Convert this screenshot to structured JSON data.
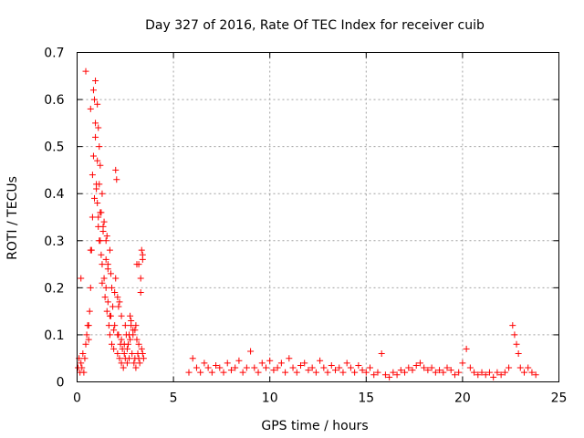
{
  "chart_data": {
    "type": "scatter",
    "title": "Day 327 of 2016, Rate Of TEC Index for receiver cuib",
    "xlabel": "GPS time / hours",
    "ylabel": "ROTI / TECUs",
    "xlim": [
      0,
      25
    ],
    "ylim": [
      0,
      0.7
    ],
    "xticks": [
      "0",
      "5",
      "10",
      "15",
      "20",
      "25"
    ],
    "yticks": [
      "0",
      "0.1",
      "0.2",
      "0.3",
      "0.4",
      "0.5",
      "0.6",
      "0.7"
    ],
    "grid": true,
    "legend": "none",
    "marker": "+",
    "color": "#ff0000",
    "series": [
      {
        "x": [
          0.05,
          0.1,
          0.15,
          0.2,
          0.25,
          0.3,
          0.35,
          0.4,
          0.45,
          0.5,
          0.55,
          0.6,
          0.65,
          0.7,
          0.75,
          0.8,
          0.85,
          0.9,
          0.95,
          1.0,
          1.05,
          1.1,
          1.15,
          1.2,
          1.25,
          1.3,
          1.35,
          1.4,
          1.45,
          1.5,
          1.55,
          1.6,
          1.65,
          1.7,
          1.75,
          1.8,
          1.85,
          1.9,
          1.95,
          2.0,
          2.05,
          2.1,
          2.15,
          2.2,
          2.25,
          2.3,
          2.35,
          2.4,
          2.45,
          2.5,
          2.55,
          2.6,
          2.65,
          2.7,
          2.75,
          2.8,
          2.85,
          2.9,
          2.95,
          3.0,
          3.05,
          3.1,
          3.15,
          3.2,
          3.25,
          3.3,
          3.35,
          3.4,
          3.45,
          0.2,
          0.45,
          0.8,
          0.95,
          1.05,
          1.1,
          1.15,
          1.2,
          1.3,
          1.4,
          1.5,
          1.6,
          1.7,
          1.8,
          2.0,
          2.1,
          2.2,
          2.3,
          2.5,
          2.7,
          2.9,
          3.1,
          3.2,
          3.3,
          3.4,
          0.6,
          0.7,
          0.9,
          1.0,
          1.1,
          1.2,
          1.3,
          1.5,
          1.6,
          1.7,
          1.9,
          2.1,
          2.3,
          2.6,
          2.8,
          3.0,
          3.2,
          3.4,
          0.7,
          0.85,
          0.95,
          1.05,
          1.15,
          1.25,
          1.35,
          1.55,
          1.75,
          1.95,
          2.15,
          2.45,
          2.75,
          3.05,
          3.35
        ],
        "y": [
          0.03,
          0.05,
          0.02,
          0.04,
          0.03,
          0.06,
          0.02,
          0.05,
          0.08,
          0.1,
          0.12,
          0.09,
          0.15,
          0.2,
          0.28,
          0.35,
          0.48,
          0.6,
          0.52,
          0.42,
          0.38,
          0.33,
          0.3,
          0.36,
          0.27,
          0.25,
          0.32,
          0.22,
          0.18,
          0.2,
          0.15,
          0.25,
          0.12,
          0.1,
          0.14,
          0.08,
          0.16,
          0.07,
          0.12,
          0.45,
          0.43,
          0.06,
          0.1,
          0.05,
          0.08,
          0.04,
          0.07,
          0.03,
          0.06,
          0.05,
          0.1,
          0.04,
          0.08,
          0.05,
          0.14,
          0.12,
          0.06,
          0.1,
          0.04,
          0.05,
          0.03,
          0.25,
          0.06,
          0.08,
          0.04,
          0.19,
          0.07,
          0.26,
          0.05,
          0.22,
          0.66,
          0.44,
          0.64,
          0.59,
          0.54,
          0.5,
          0.46,
          0.4,
          0.34,
          0.3,
          0.24,
          0.28,
          0.2,
          0.22,
          0.18,
          0.17,
          0.14,
          0.12,
          0.1,
          0.11,
          0.09,
          0.25,
          0.22,
          0.27,
          0.12,
          0.28,
          0.39,
          0.41,
          0.35,
          0.3,
          0.21,
          0.26,
          0.17,
          0.14,
          0.11,
          0.1,
          0.09,
          0.07,
          0.13,
          0.11,
          0.05,
          0.06,
          0.58,
          0.62,
          0.55,
          0.47,
          0.42,
          0.36,
          0.33,
          0.31,
          0.23,
          0.19,
          0.16,
          0.08,
          0.09,
          0.12,
          0.28
        ]
      },
      {
        "x": [
          5.8,
          6.0,
          6.2,
          6.4,
          6.6,
          6.8,
          7.0,
          7.2,
          7.4,
          7.6,
          7.8,
          8.0,
          8.2,
          8.4,
          8.6,
          8.8,
          9.0,
          9.2,
          9.4,
          9.6,
          9.8,
          10.0,
          10.2,
          10.4,
          10.6,
          10.8,
          11.0,
          11.2,
          11.4,
          11.6,
          11.8,
          12.0,
          12.2,
          12.4,
          12.6,
          12.8,
          13.0,
          13.2,
          13.4,
          13.6,
          13.8,
          14.0,
          14.2,
          14.4,
          14.6,
          14.8,
          15.0,
          15.2,
          15.4,
          15.6,
          15.8,
          16.0,
          16.2,
          16.4,
          16.6,
          16.8,
          17.0,
          17.2,
          17.4,
          17.6,
          17.8,
          18.0,
          18.2,
          18.4,
          18.6,
          18.8,
          19.0,
          19.2,
          19.4,
          19.6,
          19.8,
          20.0,
          20.2,
          20.4,
          20.6,
          20.8,
          21.0,
          21.2,
          21.4,
          21.6,
          21.8,
          22.0,
          22.2,
          22.4,
          22.6,
          22.7,
          22.8,
          22.9,
          23.0,
          23.2,
          23.4,
          23.6,
          23.8
        ],
        "y": [
          0.02,
          0.05,
          0.03,
          0.02,
          0.04,
          0.03,
          0.02,
          0.035,
          0.03,
          0.02,
          0.04,
          0.025,
          0.03,
          0.045,
          0.02,
          0.03,
          0.065,
          0.03,
          0.02,
          0.04,
          0.03,
          0.045,
          0.025,
          0.03,
          0.04,
          0.02,
          0.05,
          0.03,
          0.02,
          0.035,
          0.04,
          0.025,
          0.03,
          0.02,
          0.045,
          0.03,
          0.02,
          0.035,
          0.025,
          0.03,
          0.02,
          0.04,
          0.03,
          0.02,
          0.035,
          0.025,
          0.02,
          0.03,
          0.015,
          0.02,
          0.06,
          0.015,
          0.01,
          0.02,
          0.015,
          0.025,
          0.02,
          0.03,
          0.025,
          0.035,
          0.04,
          0.03,
          0.025,
          0.03,
          0.02,
          0.025,
          0.02,
          0.03,
          0.025,
          0.015,
          0.02,
          0.04,
          0.07,
          0.03,
          0.02,
          0.015,
          0.02,
          0.015,
          0.02,
          0.01,
          0.02,
          0.015,
          0.02,
          0.03,
          0.12,
          0.1,
          0.08,
          0.06,
          0.03,
          0.02,
          0.03,
          0.02,
          0.015
        ]
      }
    ]
  }
}
